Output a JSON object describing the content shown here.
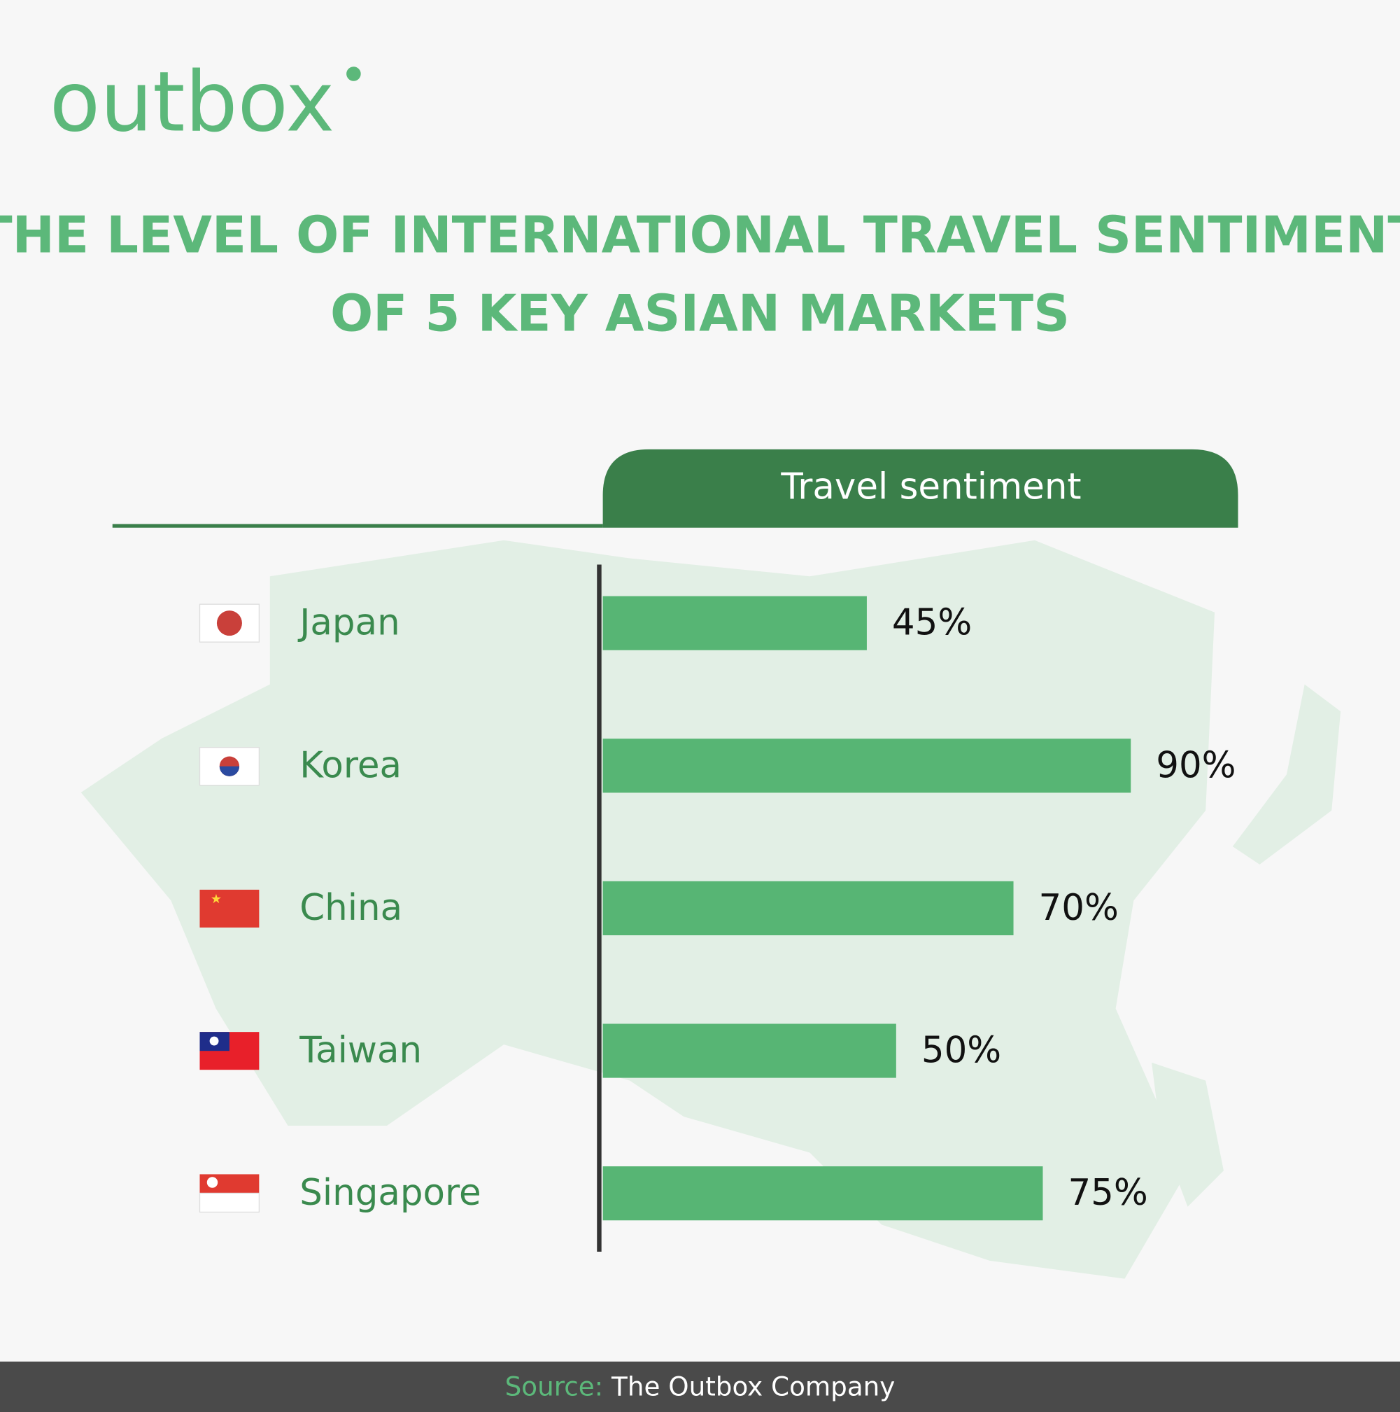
{
  "brand": "outbox",
  "chart_data": {
    "type": "bar",
    "orientation": "horizontal",
    "title": [
      "THE LEVEL OF INTERNATIONAL TRAVEL SENTIMENT",
      "OF 5 KEY ASIAN MARKETS"
    ],
    "header": "Travel sentiment",
    "categories": [
      "Japan",
      "Korea",
      "China",
      "Taiwan",
      "Singapore"
    ],
    "values": [
      45,
      90,
      70,
      50,
      75
    ],
    "value_labels": [
      "45%",
      "90%",
      "70%",
      "50%",
      "75%"
    ],
    "color": "#57b574",
    "xlim": [
      0,
      100
    ]
  },
  "footer": {
    "label": "Source:",
    "text": "The Outbox Company"
  }
}
